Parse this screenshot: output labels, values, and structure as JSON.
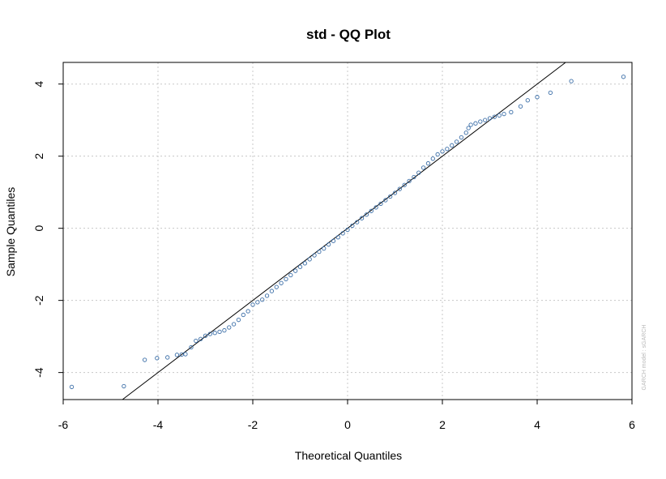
{
  "chart_data": {
    "type": "scatter",
    "title": "std - QQ Plot",
    "xlabel": "Theoretical Quantiles",
    "ylabel": "Sample Quantiles",
    "xlim": [
      -6.0,
      6.0
    ],
    "ylim": [
      -4.75,
      4.6
    ],
    "x_ticks": [
      "-6",
      "-4",
      "-2",
      "0",
      "2",
      "4",
      "6"
    ],
    "y_ticks": [
      "-4",
      "-2",
      "0",
      "2",
      "4"
    ],
    "grid": true,
    "watermark": "GARCH model : sGARCH",
    "reference_line": {
      "slope": 1.0,
      "intercept": 0.0
    },
    "colors": {
      "points": "#3c6fa8",
      "line": "#000000",
      "grid": "#c8c8c8",
      "frame": "#000000"
    },
    "points": [
      [
        -5.82,
        -4.4
      ],
      [
        -4.72,
        -4.38
      ],
      [
        -4.28,
        -3.65
      ],
      [
        -4.02,
        -3.6
      ],
      [
        -3.8,
        -3.58
      ],
      [
        -3.6,
        -3.51
      ],
      [
        -3.5,
        -3.5
      ],
      [
        -3.42,
        -3.49
      ],
      [
        -3.3,
        -3.3
      ],
      [
        -3.2,
        -3.12
      ],
      [
        -3.1,
        -3.07
      ],
      [
        -3.0,
        -2.98
      ],
      [
        -2.9,
        -2.93
      ],
      [
        -2.8,
        -2.9
      ],
      [
        -2.7,
        -2.87
      ],
      [
        -2.6,
        -2.83
      ],
      [
        -2.5,
        -2.75
      ],
      [
        -2.4,
        -2.66
      ],
      [
        -2.3,
        -2.54
      ],
      [
        -2.2,
        -2.4
      ],
      [
        -2.1,
        -2.3
      ],
      [
        -2.0,
        -2.12
      ],
      [
        -1.9,
        -2.05
      ],
      [
        -1.8,
        -1.98
      ],
      [
        -1.7,
        -1.87
      ],
      [
        -1.6,
        -1.74
      ],
      [
        -1.5,
        -1.63
      ],
      [
        -1.4,
        -1.52
      ],
      [
        -1.3,
        -1.41
      ],
      [
        -1.2,
        -1.3
      ],
      [
        -1.1,
        -1.18
      ],
      [
        -1.0,
        -1.07
      ],
      [
        -0.9,
        -0.97
      ],
      [
        -0.8,
        -0.86
      ],
      [
        -0.7,
        -0.75
      ],
      [
        -0.6,
        -0.65
      ],
      [
        -0.5,
        -0.56
      ],
      [
        -0.4,
        -0.45
      ],
      [
        -0.3,
        -0.35
      ],
      [
        -0.2,
        -0.25
      ],
      [
        -0.1,
        -0.14
      ],
      [
        0.0,
        -0.04
      ],
      [
        0.1,
        0.07
      ],
      [
        0.2,
        0.17
      ],
      [
        0.3,
        0.28
      ],
      [
        0.4,
        0.38
      ],
      [
        0.5,
        0.48
      ],
      [
        0.6,
        0.58
      ],
      [
        0.7,
        0.68
      ],
      [
        0.8,
        0.78
      ],
      [
        0.9,
        0.88
      ],
      [
        1.0,
        0.98
      ],
      [
        1.1,
        1.09
      ],
      [
        1.2,
        1.2
      ],
      [
        1.3,
        1.31
      ],
      [
        1.4,
        1.42
      ],
      [
        1.5,
        1.54
      ],
      [
        1.6,
        1.68
      ],
      [
        1.7,
        1.8
      ],
      [
        1.8,
        1.93
      ],
      [
        1.9,
        2.05
      ],
      [
        2.0,
        2.13
      ],
      [
        2.1,
        2.2
      ],
      [
        2.2,
        2.3
      ],
      [
        2.3,
        2.4
      ],
      [
        2.4,
        2.52
      ],
      [
        2.5,
        2.65
      ],
      [
        2.55,
        2.78
      ],
      [
        2.6,
        2.87
      ],
      [
        2.7,
        2.91
      ],
      [
        2.8,
        2.96
      ],
      [
        2.9,
        3.0
      ],
      [
        3.0,
        3.05
      ],
      [
        3.1,
        3.09
      ],
      [
        3.2,
        3.13
      ],
      [
        3.3,
        3.17
      ],
      [
        3.45,
        3.22
      ],
      [
        3.65,
        3.38
      ],
      [
        3.8,
        3.55
      ],
      [
        4.0,
        3.64
      ],
      [
        4.28,
        3.76
      ],
      [
        4.72,
        4.08
      ],
      [
        5.82,
        4.2
      ]
    ]
  }
}
